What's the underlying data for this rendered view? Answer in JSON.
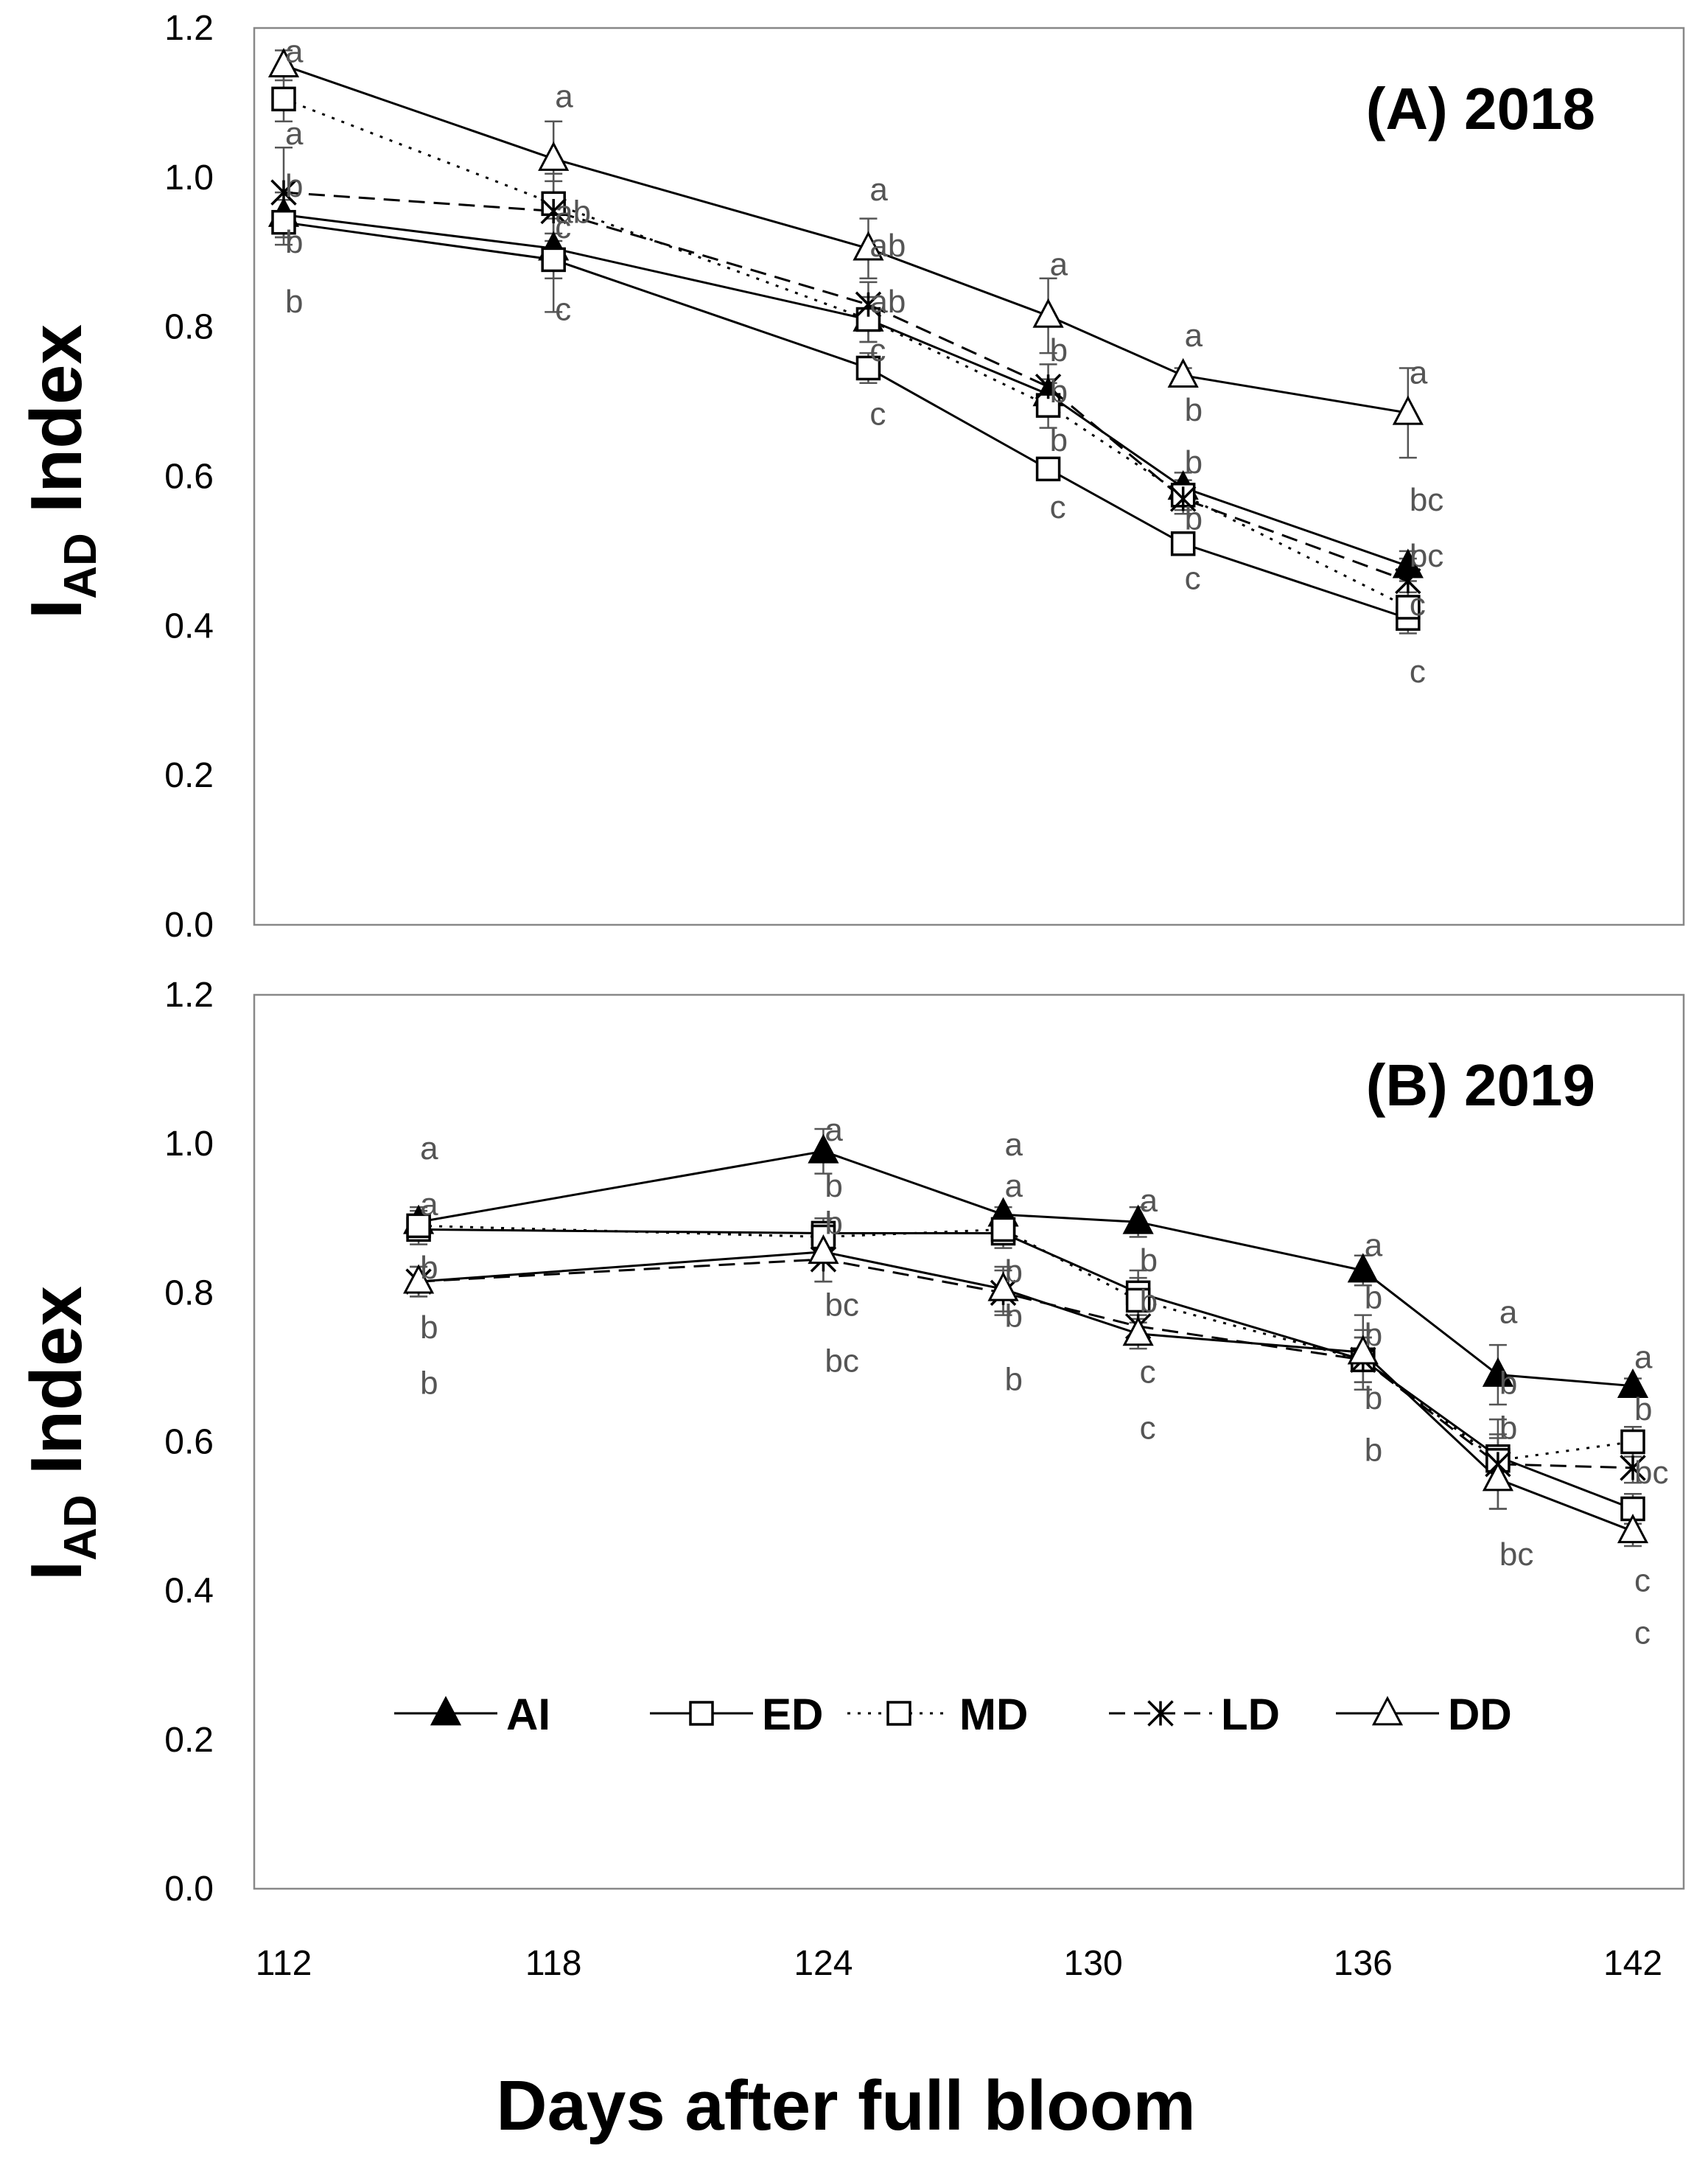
{
  "figure": {
    "x_axis_label": "Days after full bloom",
    "y_axis_label_main": "I",
    "y_axis_label_sub": "AD",
    "y_axis_label_suffix": " Index",
    "x_ticks": [
      "112",
      "118",
      "124",
      "130",
      "136",
      "142"
    ],
    "y_ticks": [
      "0.0",
      "0.2",
      "0.4",
      "0.6",
      "0.8",
      "1.0",
      "1.2"
    ]
  },
  "legend": [
    {
      "label": "AI",
      "marker": "filled-triangle",
      "dash": "solid"
    },
    {
      "label": "ED",
      "marker": "open-square",
      "dash": "solid"
    },
    {
      "label": "MD",
      "marker": "open-square",
      "dash": "dotted"
    },
    {
      "label": "LD",
      "marker": "asterisk",
      "dash": "dashed"
    },
    {
      "label": "DD",
      "marker": "open-triangle",
      "dash": "solid"
    }
  ],
  "chart_data": [
    {
      "type": "line",
      "title": "(A) 2018",
      "xlabel": "Days after full bloom",
      "ylabel": "IAD Index",
      "xlim": [
        112,
        142
      ],
      "ylim": [
        0,
        1.2
      ],
      "x": [
        112,
        118,
        125,
        129,
        132,
        137
      ],
      "series": [
        {
          "name": "AI",
          "values": [
            0.95,
            0.905,
            0.81,
            0.71,
            0.585,
            0.48
          ],
          "err": [
            0.03,
            0.04,
            0.03,
            0.02,
            0.02,
            0.02
          ]
        },
        {
          "name": "ED",
          "values": [
            0.94,
            0.89,
            0.745,
            0.61,
            0.51,
            0.41
          ],
          "err": [
            0.03,
            0.07,
            0.02,
            0.01,
            0.01,
            0.02
          ]
        },
        {
          "name": "MD",
          "values": [
            1.105,
            0.965,
            0.81,
            0.695,
            0.575,
            0.425
          ],
          "err": [
            0.03,
            0.04,
            0.03,
            0.03,
            0.02,
            0.02
          ]
        },
        {
          "name": "LD",
          "values": [
            0.98,
            0.955,
            0.83,
            0.72,
            0.57,
            0.46
          ],
          "err": [
            0.06,
            0.04,
            0.03,
            0.03,
            0.02,
            0.03
          ]
        },
        {
          "name": "DD",
          "values": [
            1.15,
            1.025,
            0.905,
            0.815,
            0.735,
            0.685
          ],
          "err": [
            0.02,
            0.05,
            0.04,
            0.05,
            0.01,
            0.06
          ]
        }
      ],
      "annotations": [
        {
          "x": 112,
          "y": 1.17,
          "text": "a"
        },
        {
          "x": 118,
          "y": 1.11,
          "text": "a"
        },
        {
          "x": 112,
          "y": 1.06,
          "text": "a"
        },
        {
          "x": 112,
          "y": 0.99,
          "text": "b"
        },
        {
          "x": 118,
          "y": 0.955,
          "text": "ab"
        },
        {
          "x": 118,
          "y": 0.935,
          "text": "c"
        },
        {
          "x": 112,
          "y": 0.915,
          "text": "b"
        },
        {
          "x": 112,
          "y": 0.835,
          "text": "b"
        },
        {
          "x": 118,
          "y": 0.825,
          "text": "c"
        },
        {
          "x": 125,
          "y": 0.985,
          "text": "a"
        },
        {
          "x": 125,
          "y": 0.91,
          "text": "ab"
        },
        {
          "x": 125,
          "y": 0.835,
          "text": "ab"
        },
        {
          "x": 125,
          "y": 0.77,
          "text": "c"
        },
        {
          "x": 125,
          "y": 0.685,
          "text": "c"
        },
        {
          "x": 129,
          "y": 0.885,
          "text": "a"
        },
        {
          "x": 129,
          "y": 0.77,
          "text": "b"
        },
        {
          "x": 129,
          "y": 0.715,
          "text": "b"
        },
        {
          "x": 129,
          "y": 0.65,
          "text": "b"
        },
        {
          "x": 129,
          "y": 0.56,
          "text": "c"
        },
        {
          "x": 132,
          "y": 0.79,
          "text": "a"
        },
        {
          "x": 132,
          "y": 0.69,
          "text": "b"
        },
        {
          "x": 132,
          "y": 0.62,
          "text": "b"
        },
        {
          "x": 132,
          "y": 0.545,
          "text": "b"
        },
        {
          "x": 132,
          "y": 0.465,
          "text": "c"
        },
        {
          "x": 137,
          "y": 0.74,
          "text": "a"
        },
        {
          "x": 137,
          "y": 0.57,
          "text": "bc"
        },
        {
          "x": 137,
          "y": 0.495,
          "text": "bc"
        },
        {
          "x": 137,
          "y": 0.43,
          "text": "c"
        },
        {
          "x": 137,
          "y": 0.34,
          "text": "c"
        }
      ]
    },
    {
      "type": "line",
      "title": "(B) 2019",
      "xlabel": "Days after full bloom",
      "ylabel": "IAD Index",
      "xlim": [
        112,
        142
      ],
      "ylim": [
        0,
        1.2
      ],
      "x": [
        115,
        124,
        128,
        131,
        136,
        139,
        142
      ],
      "series": [
        {
          "name": "AI",
          "values": [
            0.895,
            0.99,
            0.905,
            0.895,
            0.83,
            0.69,
            0.675
          ],
          "err": [
            0.02,
            0.03,
            0.01,
            0.02,
            0.02,
            0.04,
            0.01
          ]
        },
        {
          "name": "ED",
          "values": [
            0.885,
            0.88,
            0.88,
            0.8,
            0.71,
            0.58,
            0.51
          ],
          "err": [
            0.02,
            0.02,
            0.02,
            0.03,
            0.03,
            0.03,
            0.02
          ]
        },
        {
          "name": "MD",
          "values": [
            0.89,
            0.875,
            0.885,
            0.79,
            0.71,
            0.575,
            0.6
          ],
          "err": [
            0.02,
            0.02,
            0.02,
            0.03,
            0.03,
            0.03,
            0.02
          ]
        },
        {
          "name": "LD",
          "values": [
            0.815,
            0.845,
            0.8,
            0.755,
            0.71,
            0.57,
            0.565
          ],
          "err": [
            0.02,
            0.03,
            0.03,
            0.02,
            0.04,
            0.06,
            0.02
          ]
        },
        {
          "name": "DD",
          "values": [
            0.815,
            0.855,
            0.805,
            0.745,
            0.72,
            0.55,
            0.48
          ],
          "err": [
            0.02,
            0.04,
            0.03,
            0.02,
            0.05,
            0.04,
            0.02
          ]
        }
      ],
      "annotations": [
        {
          "x": 115,
          "y": 0.995,
          "text": "a"
        },
        {
          "x": 115,
          "y": 0.92,
          "text": "a"
        },
        {
          "x": 115,
          "y": 0.835,
          "text": "b"
        },
        {
          "x": 115,
          "y": 0.755,
          "text": "b"
        },
        {
          "x": 115,
          "y": 0.68,
          "text": "b"
        },
        {
          "x": 124,
          "y": 1.02,
          "text": "a"
        },
        {
          "x": 124,
          "y": 0.945,
          "text": "b"
        },
        {
          "x": 124,
          "y": 0.895,
          "text": "b"
        },
        {
          "x": 124,
          "y": 0.785,
          "text": "bc"
        },
        {
          "x": 124,
          "y": 0.71,
          "text": "bc"
        },
        {
          "x": 128,
          "y": 1.0,
          "text": "a"
        },
        {
          "x": 128,
          "y": 0.945,
          "text": "a"
        },
        {
          "x": 128,
          "y": 0.83,
          "text": "b"
        },
        {
          "x": 128,
          "y": 0.77,
          "text": "b"
        },
        {
          "x": 128,
          "y": 0.685,
          "text": "b"
        },
        {
          "x": 131,
          "y": 0.925,
          "text": "a"
        },
        {
          "x": 131,
          "y": 0.845,
          "text": "b"
        },
        {
          "x": 131,
          "y": 0.79,
          "text": "b"
        },
        {
          "x": 131,
          "y": 0.695,
          "text": "c"
        },
        {
          "x": 131,
          "y": 0.62,
          "text": "c"
        },
        {
          "x": 136,
          "y": 0.865,
          "text": "a"
        },
        {
          "x": 136,
          "y": 0.795,
          "text": "b"
        },
        {
          "x": 136,
          "y": 0.745,
          "text": "b"
        },
        {
          "x": 136,
          "y": 0.66,
          "text": "b"
        },
        {
          "x": 136,
          "y": 0.59,
          "text": "b"
        },
        {
          "x": 139,
          "y": 0.775,
          "text": "a"
        },
        {
          "x": 139,
          "y": 0.68,
          "text": "b"
        },
        {
          "x": 139,
          "y": 0.62,
          "text": "b"
        },
        {
          "x": 139,
          "y": 0.45,
          "text": "bc"
        },
        {
          "x": 142,
          "y": 0.715,
          "text": "a"
        },
        {
          "x": 142,
          "y": 0.645,
          "text": "b"
        },
        {
          "x": 142,
          "y": 0.56,
          "text": "bc"
        },
        {
          "x": 142,
          "y": 0.415,
          "text": "c"
        },
        {
          "x": 142,
          "y": 0.345,
          "text": "c"
        }
      ]
    }
  ]
}
